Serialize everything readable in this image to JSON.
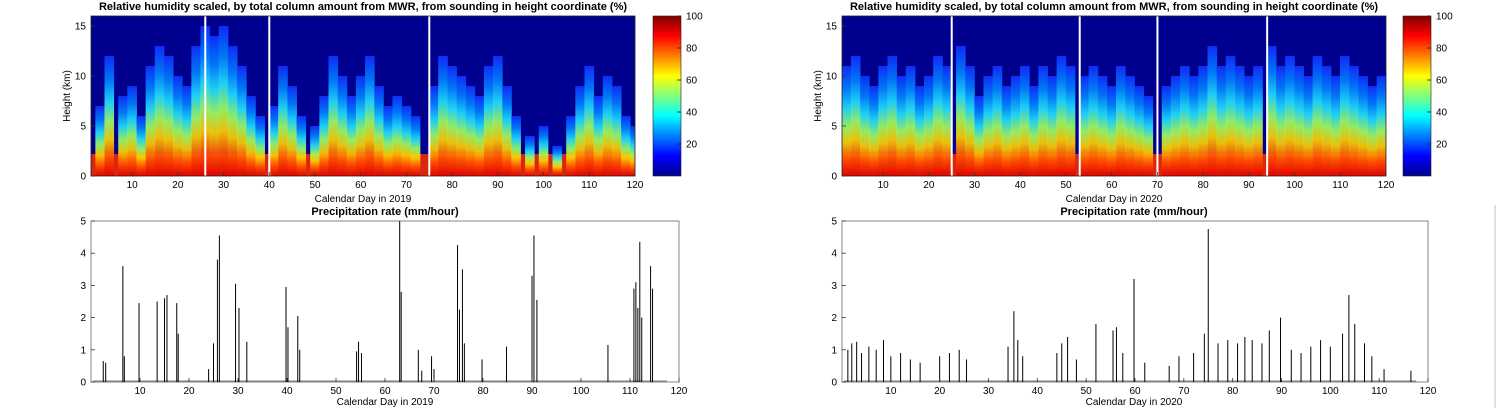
{
  "chart_data": [
    {
      "type": "heatmap",
      "title": "Relative humidity scaled, by total column amount from MWR, from sounding in height coordinate  (%)",
      "xlabel": "Calendar Day in 2019",
      "ylabel": "Height (km)",
      "xlim": [
        1,
        120
      ],
      "ylim": [
        0,
        16
      ],
      "xticks": [
        "10",
        "20",
        "30",
        "40",
        "50",
        "60",
        "70",
        "80",
        "90",
        "100",
        "110",
        "120"
      ],
      "yticks": [
        "0",
        "5",
        "10",
        "15"
      ],
      "colorbar": {
        "ticks": [
          "20",
          "40",
          "60",
          "80",
          "100"
        ],
        "range": [
          0,
          100
        ],
        "colormap": "jet"
      },
      "grid": false,
      "columns": [
        {
          "x": 3,
          "top": 7
        },
        {
          "x": 5,
          "top": 12
        },
        {
          "x": 8,
          "top": 8
        },
        {
          "x": 10,
          "top": 9
        },
        {
          "x": 12,
          "top": 6
        },
        {
          "x": 14,
          "top": 11
        },
        {
          "x": 16,
          "top": 13
        },
        {
          "x": 18,
          "top": 12
        },
        {
          "x": 20,
          "top": 10
        },
        {
          "x": 22,
          "top": 9
        },
        {
          "x": 24,
          "top": 13
        },
        {
          "x": 26,
          "top": 15
        },
        {
          "x": 28,
          "top": 14
        },
        {
          "x": 30,
          "top": 15
        },
        {
          "x": 32,
          "top": 13
        },
        {
          "x": 34,
          "top": 11
        },
        {
          "x": 36,
          "top": 8
        },
        {
          "x": 38,
          "top": 6
        },
        {
          "x": 41,
          "top": 7
        },
        {
          "x": 43,
          "top": 11
        },
        {
          "x": 45,
          "top": 9
        },
        {
          "x": 47,
          "top": 6
        },
        {
          "x": 50,
          "top": 5
        },
        {
          "x": 52,
          "top": 8
        },
        {
          "x": 54,
          "top": 12
        },
        {
          "x": 56,
          "top": 10
        },
        {
          "x": 58,
          "top": 8
        },
        {
          "x": 60,
          "top": 10
        },
        {
          "x": 62,
          "top": 12
        },
        {
          "x": 64,
          "top": 9
        },
        {
          "x": 66,
          "top": 7
        },
        {
          "x": 68,
          "top": 8
        },
        {
          "x": 70,
          "top": 7
        },
        {
          "x": 72,
          "top": 6
        },
        {
          "x": 76,
          "top": 9
        },
        {
          "x": 78,
          "top": 12
        },
        {
          "x": 80,
          "top": 11
        },
        {
          "x": 82,
          "top": 10
        },
        {
          "x": 84,
          "top": 9
        },
        {
          "x": 86,
          "top": 8
        },
        {
          "x": 88,
          "top": 11
        },
        {
          "x": 90,
          "top": 12
        },
        {
          "x": 92,
          "top": 9
        },
        {
          "x": 94,
          "top": 6
        },
        {
          "x": 97,
          "top": 4
        },
        {
          "x": 100,
          "top": 5
        },
        {
          "x": 103,
          "top": 3
        },
        {
          "x": 106,
          "top": 6
        },
        {
          "x": 108,
          "top": 9
        },
        {
          "x": 110,
          "top": 11
        },
        {
          "x": 112,
          "top": 8
        },
        {
          "x": 114,
          "top": 10
        },
        {
          "x": 116,
          "top": 9
        },
        {
          "x": 118,
          "top": 6
        },
        {
          "x": 120,
          "top": 5
        }
      ],
      "gaps": [
        26,
        40,
        75
      ]
    },
    {
      "type": "heatmap",
      "title": "Relative humidity scaled, by total column amount from MWR, from sounding in height coordinate  (%)",
      "xlabel": "Calendar Day in 2020",
      "ylabel": "Height (km)",
      "xlim": [
        1,
        120
      ],
      "ylim": [
        0,
        16
      ],
      "xticks": [
        "10",
        "20",
        "30",
        "40",
        "50",
        "60",
        "70",
        "80",
        "90",
        "100",
        "110",
        "120"
      ],
      "yticks": [
        "0",
        "5",
        "10",
        "15"
      ],
      "colorbar": {
        "ticks": [
          "20",
          "40",
          "60",
          "80",
          "100"
        ],
        "range": [
          0,
          100
        ],
        "colormap": "jet"
      },
      "grid": false,
      "columns": [
        {
          "x": 2,
          "top": 11
        },
        {
          "x": 4,
          "top": 12
        },
        {
          "x": 6,
          "top": 10
        },
        {
          "x": 8,
          "top": 9
        },
        {
          "x": 10,
          "top": 11
        },
        {
          "x": 12,
          "top": 12
        },
        {
          "x": 14,
          "top": 10
        },
        {
          "x": 16,
          "top": 11
        },
        {
          "x": 18,
          "top": 9
        },
        {
          "x": 20,
          "top": 10
        },
        {
          "x": 22,
          "top": 12
        },
        {
          "x": 24,
          "top": 11
        },
        {
          "x": 27,
          "top": 13
        },
        {
          "x": 29,
          "top": 11
        },
        {
          "x": 31,
          "top": 8
        },
        {
          "x": 33,
          "top": 10
        },
        {
          "x": 35,
          "top": 11
        },
        {
          "x": 37,
          "top": 9
        },
        {
          "x": 39,
          "top": 10
        },
        {
          "x": 41,
          "top": 11
        },
        {
          "x": 43,
          "top": 9
        },
        {
          "x": 45,
          "top": 11
        },
        {
          "x": 47,
          "top": 10
        },
        {
          "x": 49,
          "top": 12
        },
        {
          "x": 51,
          "top": 11
        },
        {
          "x": 54,
          "top": 10
        },
        {
          "x": 56,
          "top": 11
        },
        {
          "x": 58,
          "top": 10
        },
        {
          "x": 60,
          "top": 9
        },
        {
          "x": 62,
          "top": 11
        },
        {
          "x": 64,
          "top": 10
        },
        {
          "x": 66,
          "top": 9
        },
        {
          "x": 68,
          "top": 8
        },
        {
          "x": 72,
          "top": 9
        },
        {
          "x": 74,
          "top": 10
        },
        {
          "x": 76,
          "top": 11
        },
        {
          "x": 78,
          "top": 10
        },
        {
          "x": 80,
          "top": 11
        },
        {
          "x": 82,
          "top": 13
        },
        {
          "x": 84,
          "top": 11
        },
        {
          "x": 86,
          "top": 12
        },
        {
          "x": 88,
          "top": 11
        },
        {
          "x": 90,
          "top": 10
        },
        {
          "x": 92,
          "top": 11
        },
        {
          "x": 95,
          "top": 13
        },
        {
          "x": 97,
          "top": 11
        },
        {
          "x": 99,
          "top": 12
        },
        {
          "x": 101,
          "top": 11
        },
        {
          "x": 103,
          "top": 10
        },
        {
          "x": 105,
          "top": 12
        },
        {
          "x": 107,
          "top": 11
        },
        {
          "x": 109,
          "top": 10
        },
        {
          "x": 111,
          "top": 12
        },
        {
          "x": 113,
          "top": 11
        },
        {
          "x": 115,
          "top": 10
        },
        {
          "x": 117,
          "top": 9
        },
        {
          "x": 119,
          "top": 10
        }
      ],
      "gaps": [
        25,
        53,
        70,
        94
      ]
    },
    {
      "type": "bar",
      "title": "Precipitation rate  (mm/hour)",
      "xlabel": "Calendar Day in 2019",
      "ylabel": "",
      "xlim": [
        0,
        120
      ],
      "ylim": [
        0,
        5
      ],
      "xticks": [
        "10",
        "20",
        "30",
        "40",
        "50",
        "60",
        "70",
        "80",
        "90",
        "100",
        "110",
        "120"
      ],
      "yticks": [
        "0",
        "1",
        "2",
        "3",
        "4",
        "5"
      ],
      "grid": false,
      "x": [
        2.5,
        3,
        6.5,
        6.8,
        9.8,
        13.5,
        15,
        15.5,
        17.5,
        17.8,
        24,
        25,
        25.8,
        26.2,
        29.5,
        30.2,
        31.8,
        39.8,
        40.2,
        42.2,
        42.6,
        54.2,
        54.6,
        55.2,
        63,
        63.3,
        66.8,
        67.5,
        69.5,
        70,
        74.8,
        75.2,
        75.8,
        76.2,
        79.8,
        84.8,
        90,
        90.4,
        91,
        105.5,
        110.8,
        111.2,
        111.6,
        112,
        112.4,
        114.2,
        114.6
      ],
      "values": [
        0.65,
        0.6,
        3.6,
        0.8,
        2.45,
        2.5,
        2.6,
        2.7,
        2.45,
        1.5,
        0.4,
        1.2,
        3.8,
        4.55,
        3.05,
        2.3,
        1.25,
        2.95,
        1.7,
        2.05,
        1.0,
        0.95,
        1.25,
        0.9,
        5.0,
        2.8,
        1.0,
        0.35,
        0.8,
        0.4,
        4.25,
        2.25,
        3.5,
        1.2,
        0.7,
        1.1,
        3.3,
        4.55,
        2.55,
        1.15,
        2.9,
        3.1,
        2.3,
        4.35,
        2.0,
        3.6,
        2.9
      ]
    },
    {
      "type": "bar",
      "title": "Precipitation rate  (mm/hour)",
      "xlabel": "Calendar Day in 2020",
      "ylabel": "",
      "xlim": [
        0,
        120
      ],
      "ylim": [
        0,
        5
      ],
      "xticks": [
        "10",
        "20",
        "30",
        "40",
        "50",
        "60",
        "70",
        "80",
        "90",
        "100",
        "110",
        "120"
      ],
      "yticks": [
        "0",
        "1",
        "2",
        "3",
        "4",
        "5"
      ],
      "grid": false,
      "x": [
        1.2,
        2,
        3,
        4,
        5.5,
        7,
        8.5,
        10,
        12,
        14,
        16,
        20,
        22,
        24,
        25.5,
        34,
        35.2,
        36,
        37,
        44,
        45,
        46.2,
        48,
        52,
        55.5,
        56.2,
        57.5,
        59.8,
        62,
        67,
        69,
        72,
        74.2,
        75,
        77,
        79,
        81,
        82.5,
        84,
        86,
        87.5,
        89.8,
        92,
        94,
        96,
        98,
        100,
        102.5,
        103.8,
        105,
        107,
        108.5,
        111,
        116.5
      ],
      "values": [
        1.0,
        1.2,
        1.25,
        0.9,
        1.1,
        1.0,
        1.3,
        0.8,
        0.9,
        0.7,
        0.6,
        0.8,
        0.9,
        1.0,
        0.7,
        1.1,
        2.2,
        1.3,
        0.8,
        0.9,
        1.2,
        1.4,
        0.7,
        1.8,
        1.6,
        1.7,
        0.9,
        3.2,
        0.6,
        0.5,
        0.8,
        0.9,
        1.5,
        4.75,
        1.2,
        1.3,
        1.2,
        1.4,
        1.3,
        1.2,
        1.6,
        2.0,
        1.0,
        0.9,
        1.1,
        1.3,
        1.1,
        1.5,
        2.7,
        1.8,
        1.2,
        0.8,
        0.4,
        0.35
      ]
    }
  ]
}
